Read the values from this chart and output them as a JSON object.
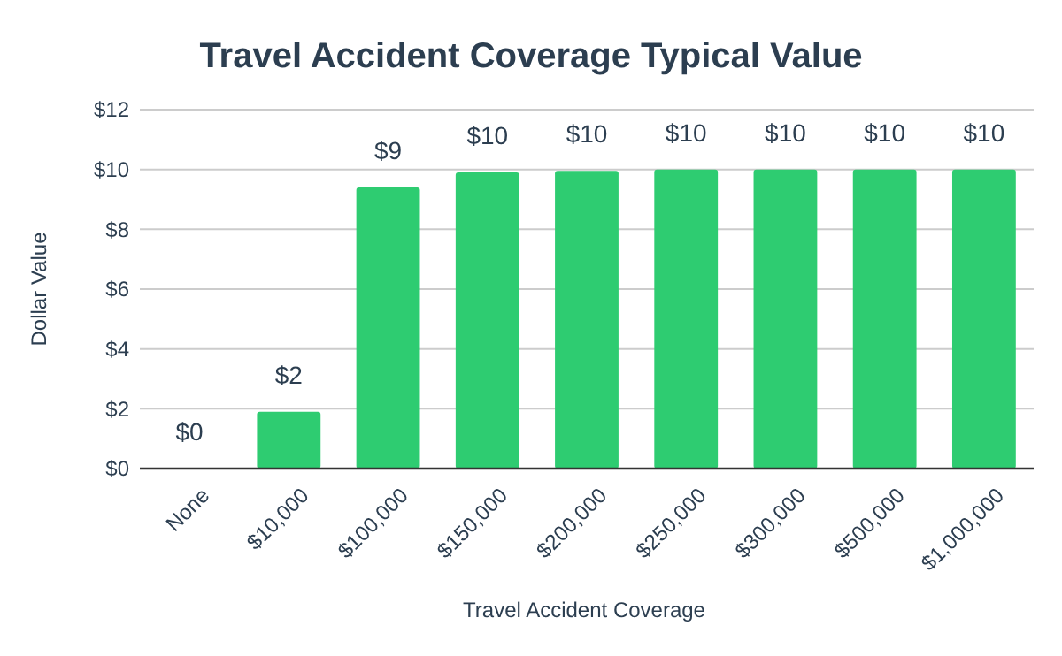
{
  "chart_data": {
    "type": "bar",
    "title": "Travel Accident Coverage Typical Value",
    "xlabel": "Travel Accident Coverage",
    "ylabel": "Dollar Value",
    "categories": [
      "None",
      "$10,000",
      "$100,000",
      "$150,000",
      "$200,000",
      "$250,000",
      "$300,000",
      "$500,000",
      "$1,000,000"
    ],
    "values": [
      0,
      1.9,
      9.4,
      9.9,
      9.95,
      10,
      10,
      10,
      10
    ],
    "value_labels": [
      "$0",
      "$2",
      "$9",
      "$10",
      "$10",
      "$10",
      "$10",
      "$10",
      "$10"
    ],
    "color": "#2ecc71",
    "ylim": [
      0,
      12
    ],
    "yticks": [
      {
        "value": 0,
        "label": "$0"
      },
      {
        "value": 2,
        "label": "$2"
      },
      {
        "value": 4,
        "label": "$4"
      },
      {
        "value": 6,
        "label": "$6"
      },
      {
        "value": 8,
        "label": "$8"
      },
      {
        "value": 10,
        "label": "$10"
      },
      {
        "value": 12,
        "label": "$12"
      }
    ],
    "grid": "y"
  }
}
